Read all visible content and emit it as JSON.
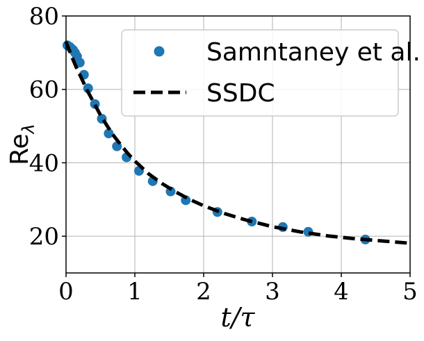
{
  "chart_data": {
    "type": "line",
    "title": "",
    "xlabel": "t/τ",
    "ylabel": "Re",
    "ylabel_subscript": "λ",
    "xlim": [
      0,
      5
    ],
    "ylim": [
      10,
      80
    ],
    "xticks": [
      0,
      1,
      2,
      3,
      4,
      5
    ],
    "yticks": [
      20,
      40,
      60,
      80
    ],
    "grid": true,
    "legend_position": "top-right",
    "series": [
      {
        "name": "Samntaney et al.",
        "style": "scatter",
        "color": "#1f77b4",
        "x": [
          0.02,
          0.06,
          0.1,
          0.13,
          0.16,
          0.2,
          0.26,
          0.32,
          0.42,
          0.52,
          0.62,
          0.74,
          0.88,
          1.06,
          1.26,
          1.52,
          1.74,
          2.2,
          2.7,
          3.15,
          3.52,
          4.35
        ],
        "y": [
          72,
          71.5,
          70.8,
          70,
          69,
          67.3,
          64,
          60.3,
          56,
          52,
          48,
          44.5,
          41.5,
          37.8,
          35,
          32.2,
          29.8,
          26.6,
          24,
          22.5,
          21.2,
          19.1
        ]
      },
      {
        "name": "SSDC",
        "style": "dashed",
        "color": "#000000",
        "x": [
          0,
          0.05,
          0.1,
          0.15,
          0.2,
          0.25,
          0.3,
          0.4,
          0.5,
          0.6,
          0.7,
          0.8,
          0.9,
          1.0,
          1.2,
          1.4,
          1.6,
          1.8,
          2.0,
          2.3,
          2.6,
          3.0,
          3.4,
          3.8,
          4.2,
          4.6,
          5.0
        ],
        "y": [
          73,
          70.5,
          68.2,
          66,
          64,
          62,
          60,
          56.5,
          53,
          50,
          47.2,
          44.8,
          42.5,
          40.5,
          37,
          34.3,
          32,
          30,
          28.3,
          26.2,
          24.5,
          22.6,
          21.2,
          20.1,
          19.3,
          18.7,
          18.1
        ]
      }
    ]
  }
}
